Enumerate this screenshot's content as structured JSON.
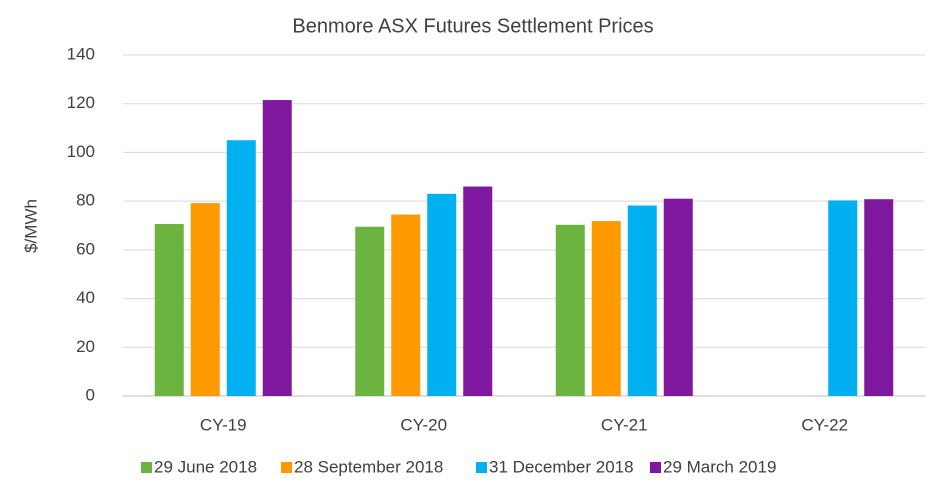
{
  "chart_data": {
    "type": "bar",
    "title": "Benmore ASX Futures Settlement Prices",
    "y_label": "$/MWh",
    "categories": [
      "CY-19",
      "CY-20",
      "CY-21",
      "CY-22"
    ],
    "series": [
      {
        "name": "29 June 2018",
        "color": "#6db33f",
        "values": [
          70.6,
          69.5,
          70.3,
          null
        ]
      },
      {
        "name": "28 September 2018",
        "color": "#ff9900",
        "values": [
          79.2,
          74.5,
          71.8,
          null
        ]
      },
      {
        "name": "31 December 2018",
        "color": "#00b0f0",
        "values": [
          105,
          83,
          78.2,
          80.3
        ]
      },
      {
        "name": "29 March 2019",
        "color": "#7f179f",
        "values": [
          121.5,
          86,
          81,
          80.8
        ]
      }
    ],
    "ylim": [
      0,
      140
    ],
    "yticks": [
      0,
      20,
      40,
      60,
      80,
      100,
      120,
      140
    ],
    "grid": true,
    "legend": "bottom"
  }
}
